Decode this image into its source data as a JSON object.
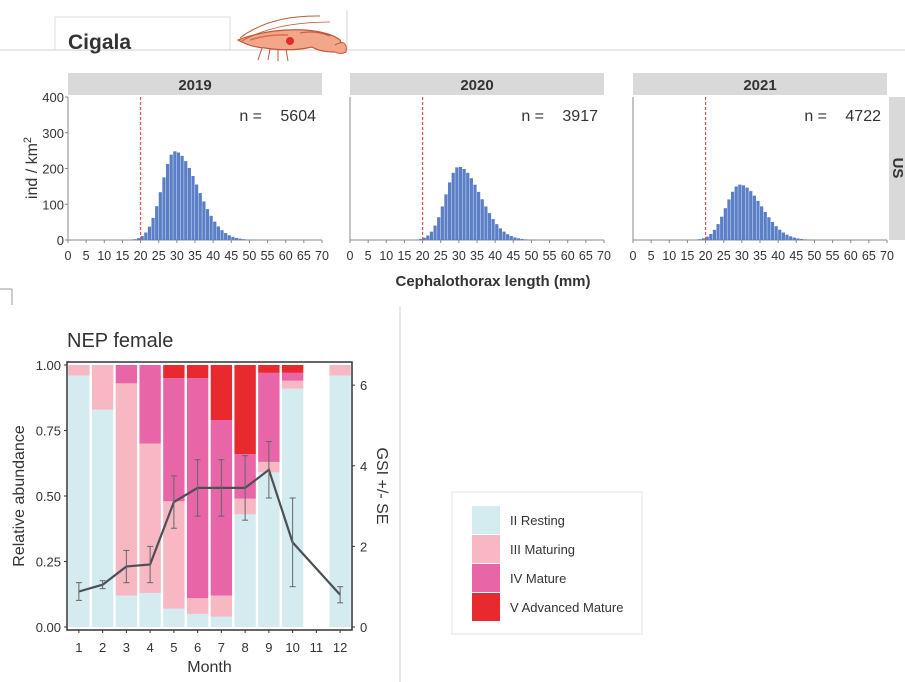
{
  "header": {
    "title": "Cigala",
    "accent": "#1f3a6e"
  },
  "colors": {
    "hist_bar": "#5b7fc7",
    "threshold_line": "#d9534f",
    "resting": "#d4ecef",
    "maturing": "#f7b7c3",
    "mature": "#e866a8",
    "advanced": "#e8292d",
    "gsi_line": "#4a5055",
    "panel_strip": "#d9d9d9"
  },
  "chart_data": [
    {
      "type": "bar",
      "title": "",
      "xlabel": "Cephalothorax length (mm)",
      "ylabel": "ind / km²",
      "ylabel_main": "ind / km",
      "ylabel_sup": "2",
      "xlim": [
        0,
        70
      ],
      "ylim": [
        0,
        400
      ],
      "yticks": [
        "0",
        "100",
        "200",
        "300",
        "400"
      ],
      "xticks": [
        "0",
        "5",
        "10",
        "15",
        "20",
        "25",
        "30",
        "35",
        "40",
        "45",
        "50",
        "55",
        "60",
        "65",
        "70"
      ],
      "strip_right": "US",
      "bin_width": 1,
      "threshold_x": 20,
      "panels": [
        {
          "year": "2019",
          "n_label": "n =",
          "n": "5604",
          "peak_x": 29.5,
          "peak_y": 248,
          "sd_left": 3.6,
          "sd_right": 6.2
        },
        {
          "year": "2020",
          "n_label": "n =",
          "n": "3917",
          "peak_x": 30,
          "peak_y": 205,
          "sd_left": 3.6,
          "sd_right": 6.0
        },
        {
          "year": "2021",
          "n_label": "n =",
          "n": "4722",
          "peak_x": 29.5,
          "peak_y": 155,
          "sd_left": 3.8,
          "sd_right": 6.0
        }
      ]
    },
    {
      "type": "bar",
      "title": "NEP female",
      "xlabel": "Month",
      "ylabel": "Relative abundance",
      "y2label": "GSI +/- SE",
      "ylim": [
        0,
        1
      ],
      "y2lim": [
        0,
        6.5
      ],
      "yticks": [
        "0.00",
        "0.25",
        "0.50",
        "0.75",
        "1.00"
      ],
      "y2ticks": [
        "0",
        "2",
        "4",
        "6"
      ],
      "categories": [
        "1",
        "2",
        "3",
        "4",
        "5",
        "6",
        "7",
        "8",
        "9",
        "10",
        "11",
        "12"
      ],
      "series": [
        {
          "name": "II Resting",
          "values": [
            0.96,
            0.83,
            0.12,
            0.13,
            0.07,
            0.05,
            0.04,
            0.43,
            0.59,
            0.91,
            null,
            0.96
          ]
        },
        {
          "name": "III Maturing",
          "values": [
            0.04,
            0.17,
            0.81,
            0.57,
            0.41,
            0.06,
            0.08,
            0.06,
            0.04,
            0.03,
            null,
            0.04
          ]
        },
        {
          "name": "IV Mature",
          "values": [
            0.0,
            0.0,
            0.07,
            0.3,
            0.47,
            0.84,
            0.67,
            0.17,
            0.34,
            0.03,
            null,
            0.0
          ]
        },
        {
          "name": "V Advanced Mature",
          "values": [
            0.0,
            0.0,
            0.0,
            0.0,
            0.05,
            0.05,
            0.21,
            0.34,
            0.03,
            0.03,
            null,
            0.0
          ]
        }
      ],
      "gsi": {
        "x": [
          1,
          2,
          3,
          4,
          5,
          6,
          7,
          8,
          9,
          10,
          12
        ],
        "values": [
          0.88,
          1.05,
          1.5,
          1.55,
          3.1,
          3.45,
          3.45,
          3.45,
          3.9,
          2.1,
          0.8
        ],
        "se": [
          0.22,
          0.1,
          0.4,
          0.45,
          0.65,
          0.7,
          0.7,
          0.8,
          0.7,
          1.1,
          0.2
        ]
      },
      "legend_position": "right"
    }
  ]
}
